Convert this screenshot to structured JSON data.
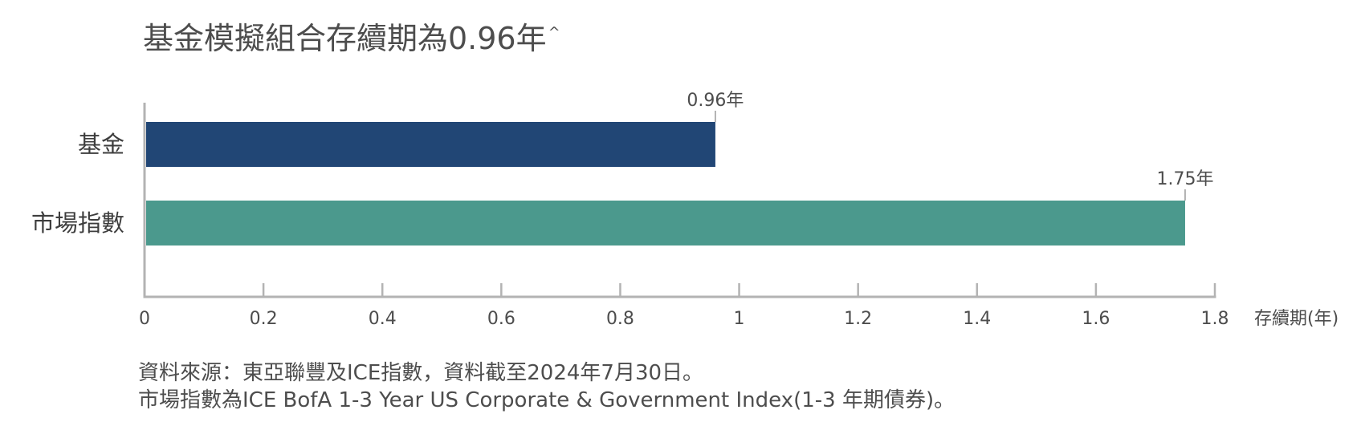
{
  "title": {
    "text": "基金模擬組合存續期為0.96年",
    "marker": "^"
  },
  "chart_data": {
    "type": "bar",
    "orientation": "horizontal",
    "categories": [
      "基金",
      "市場指數"
    ],
    "values": [
      0.96,
      1.75
    ],
    "data_labels": [
      "0.96年",
      "1.75年"
    ],
    "colors": [
      "#214675",
      "#4b998d"
    ],
    "xlabel": "存續期(年)",
    "xlim": [
      0,
      1.8
    ],
    "xticks": [
      0,
      0.2,
      0.4,
      0.6,
      0.8,
      1,
      1.2,
      1.4,
      1.6,
      1.8
    ],
    "xtick_labels": [
      "0",
      "0.2",
      "0.4",
      "0.6",
      "0.8",
      "1",
      "1.2",
      "1.4",
      "1.6",
      "1.8"
    ],
    "grid": false,
    "legend": "none"
  },
  "notes": [
    "資料來源：東亞聯豐及ICE指數，資料截至2024年7月30日。",
    "市場指數為ICE BofA 1-3 Year US Corporate & Government Index(1-3 年期債券)。"
  ]
}
